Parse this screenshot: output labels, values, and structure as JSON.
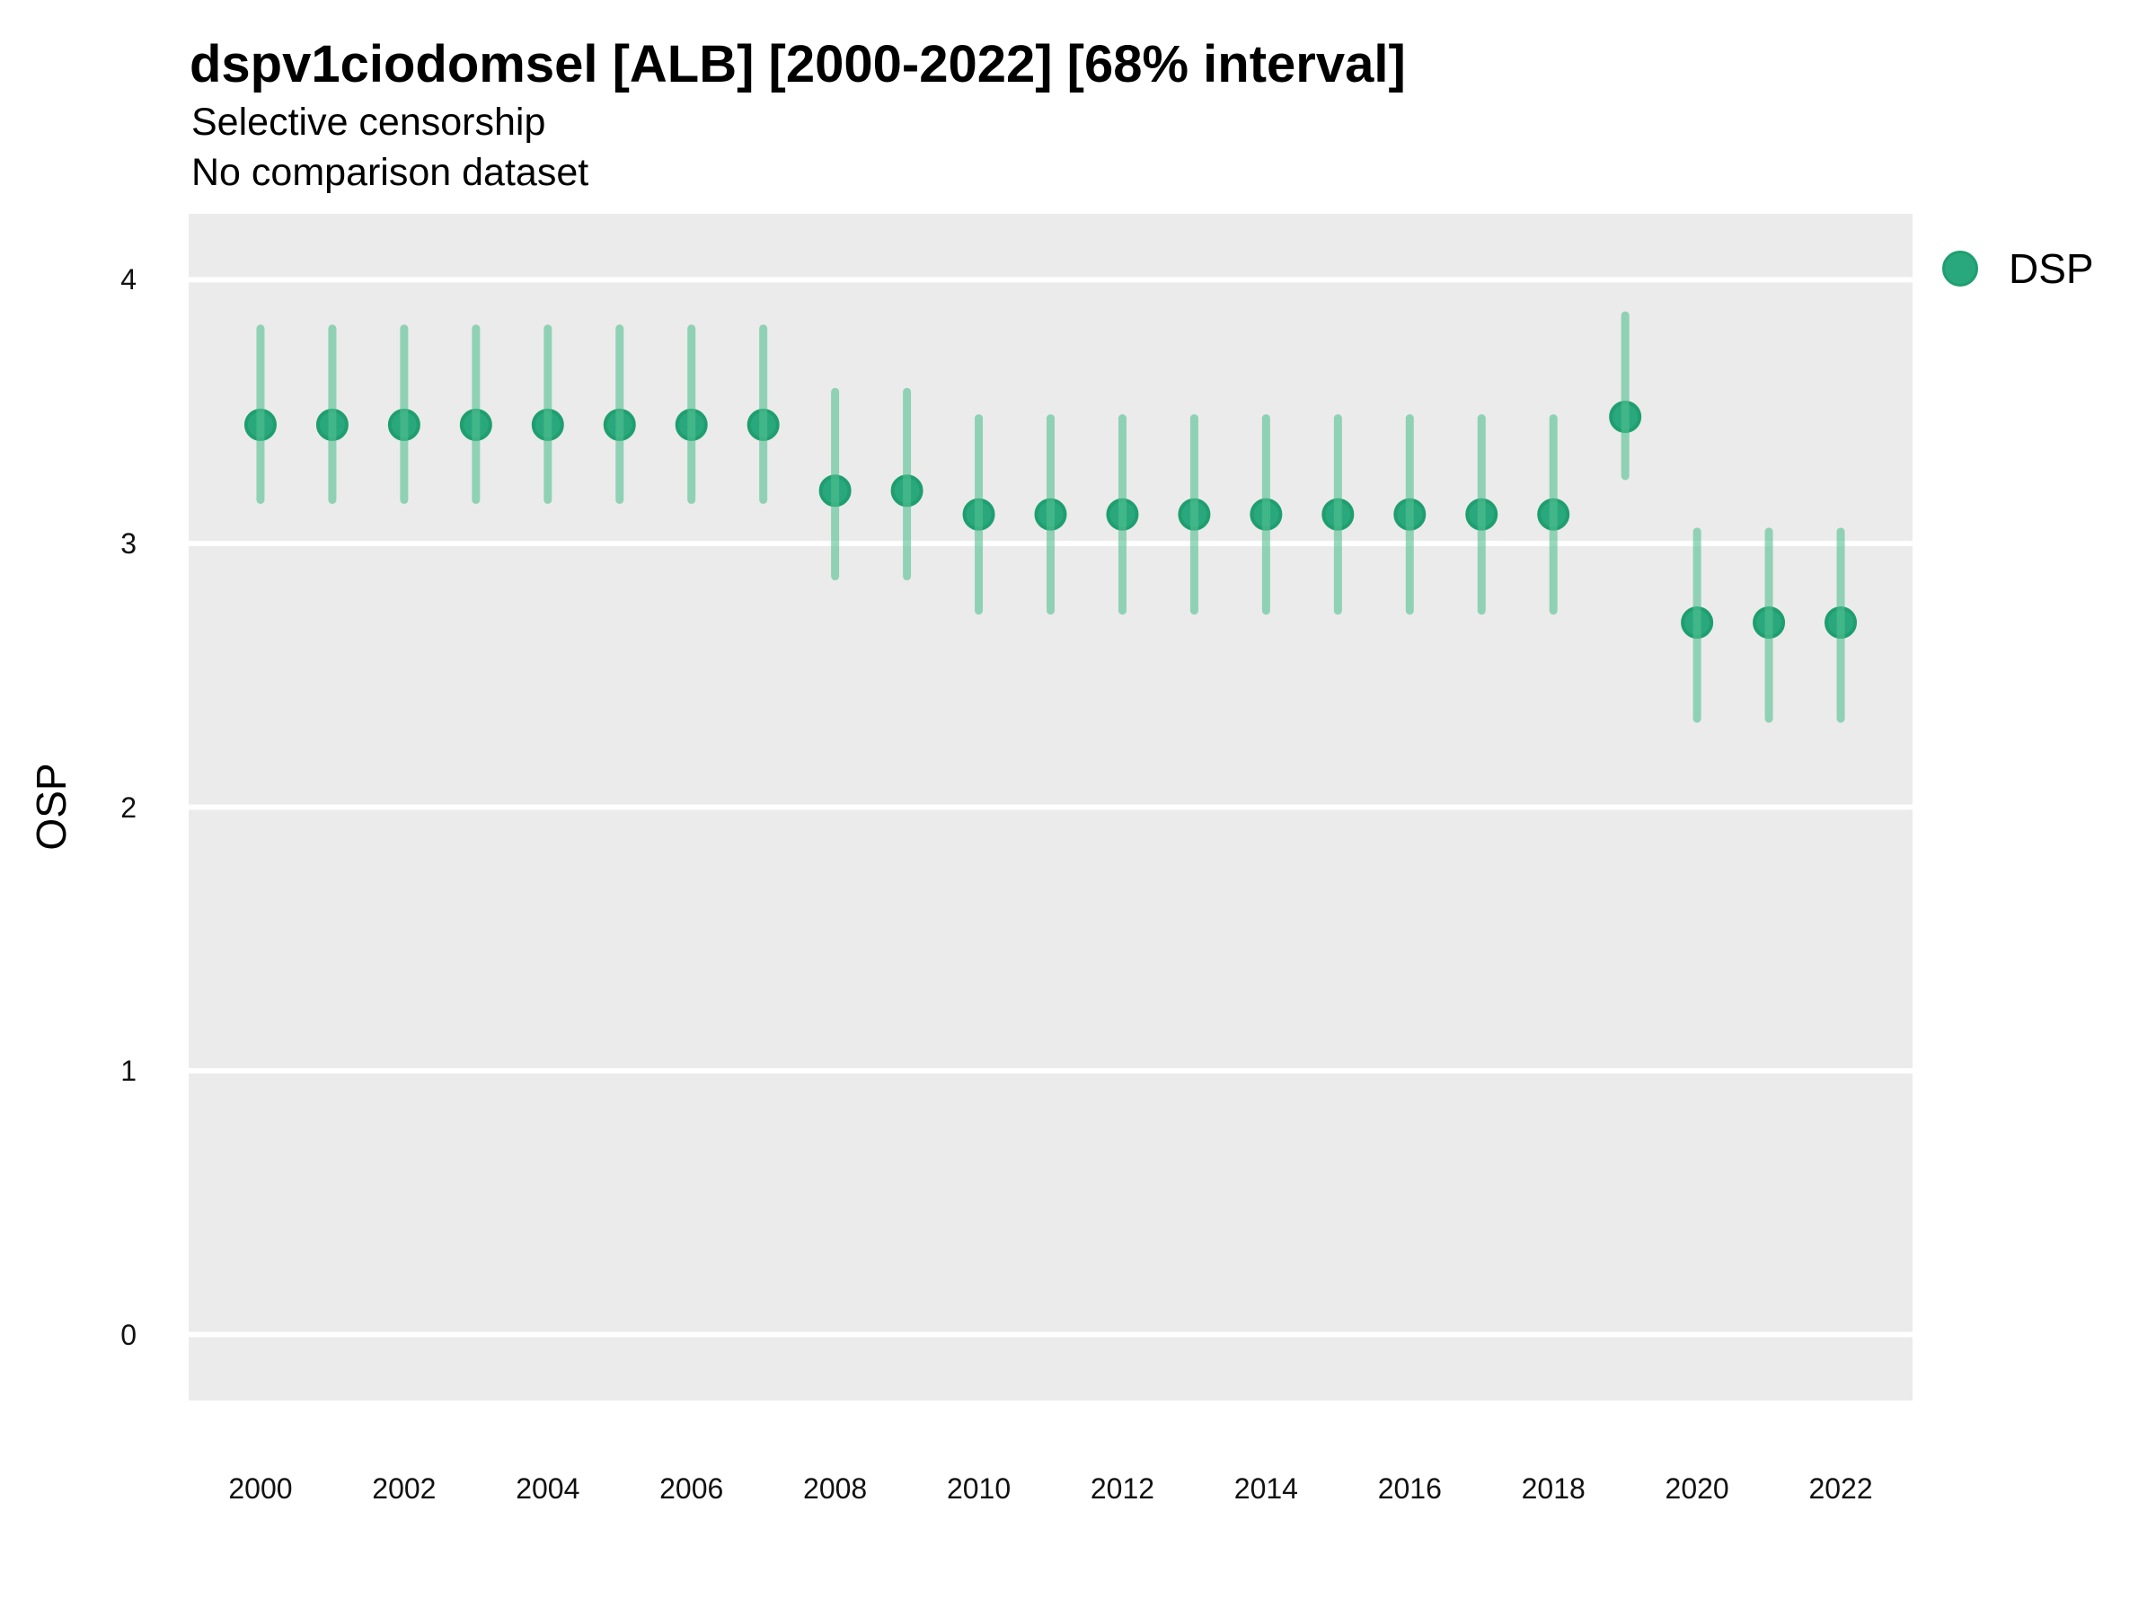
{
  "title": "dspv1ciodomsel [ALB] [2000-2022] [68% interval]",
  "subtitle_line1": "Selective censorship",
  "subtitle_line2": "No comparison dataset",
  "legend": {
    "position": "right-top",
    "items": [
      {
        "label": "DSP",
        "color": "#2aa87d"
      }
    ]
  },
  "colors": {
    "panel_bg": "#ebebeb",
    "gridline": "#ffffff",
    "point_fill": "#2aa87d",
    "point_stroke": "#1f9e70",
    "errorbar": "#52c08f",
    "errorbar_opacity": 0.6,
    "text": "#000000"
  },
  "chart_data": {
    "type": "scatter",
    "title": "dspv1ciodomsel [ALB] [2000-2022] [68% interval]",
    "subtitle": [
      "Selective censorship",
      "No comparison dataset"
    ],
    "xlabel": "",
    "ylabel": "OSP",
    "interval": "68%",
    "series": [
      {
        "name": "DSP",
        "x": [
          2000,
          2001,
          2002,
          2003,
          2004,
          2005,
          2006,
          2007,
          2008,
          2009,
          2010,
          2011,
          2012,
          2013,
          2014,
          2015,
          2016,
          2017,
          2018,
          2019,
          2020,
          2021,
          2022
        ],
        "y": [
          3.45,
          3.45,
          3.45,
          3.45,
          3.45,
          3.45,
          3.45,
          3.45,
          3.2,
          3.2,
          3.11,
          3.11,
          3.11,
          3.11,
          3.11,
          3.11,
          3.11,
          3.11,
          3.11,
          3.48,
          2.7,
          2.7,
          2.7
        ],
        "y_lo": [
          3.15,
          3.15,
          3.15,
          3.15,
          3.15,
          3.15,
          3.15,
          3.15,
          2.86,
          2.86,
          2.73,
          2.73,
          2.73,
          2.73,
          2.73,
          2.73,
          2.73,
          2.73,
          2.73,
          3.24,
          2.32,
          2.32,
          2.32
        ],
        "y_hi": [
          3.83,
          3.83,
          3.83,
          3.83,
          3.83,
          3.83,
          3.83,
          3.83,
          3.59,
          3.59,
          3.49,
          3.49,
          3.49,
          3.49,
          3.49,
          3.49,
          3.49,
          3.49,
          3.49,
          3.88,
          3.06,
          3.06,
          3.06
        ]
      }
    ],
    "x_ticks": [
      2000,
      2002,
      2004,
      2006,
      2008,
      2010,
      2012,
      2014,
      2016,
      2018,
      2020,
      2022
    ],
    "y_ticks": [
      0,
      1,
      2,
      3,
      4
    ],
    "xlim": [
      1999,
      2023
    ],
    "ylim": [
      -0.25,
      4.25
    ],
    "grid": "horizontal-major-only",
    "legend_position": "right-top"
  }
}
